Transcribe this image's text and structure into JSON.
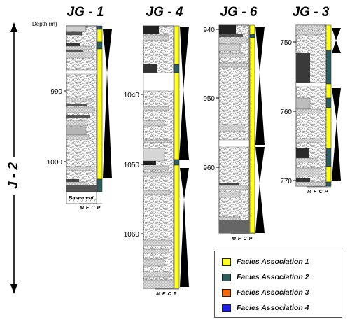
{
  "section_label": "J - 2",
  "depth_label": "Depth (m)",
  "basement_label": "Basement",
  "grain_scale": [
    "M",
    "F",
    "C",
    "P"
  ],
  "colors": {
    "facies_1": "#ffff22",
    "facies_2": "#2f5d5d",
    "facies_3": "#f26a0f",
    "facies_4": "#1d1de6"
  },
  "wells": [
    {
      "name": "JG - 1",
      "ticks": [
        "990",
        "1000"
      ],
      "depth_range": [
        981,
        1004
      ]
    },
    {
      "name": "JG - 4",
      "ticks": [
        "1040",
        "1050",
        "1060"
      ],
      "depth_range": [
        1031,
        1066
      ]
    },
    {
      "name": "JG - 6",
      "ticks": [
        "940",
        "950",
        "960"
      ],
      "depth_range": [
        940,
        965
      ]
    },
    {
      "name": "JG - 3",
      "ticks": [
        "750",
        "760",
        "770"
      ],
      "depth_range": [
        748,
        771
      ]
    }
  ],
  "legend": [
    {
      "label": "Facies Association 1",
      "color": "#ffff22"
    },
    {
      "label": "Facies Association 2",
      "color": "#2f5d5d"
    },
    {
      "label": "Facies Association 3",
      "color": "#f26a0f"
    },
    {
      "label": "Facies Association 4",
      "color": "#1d1de6"
    }
  ]
}
